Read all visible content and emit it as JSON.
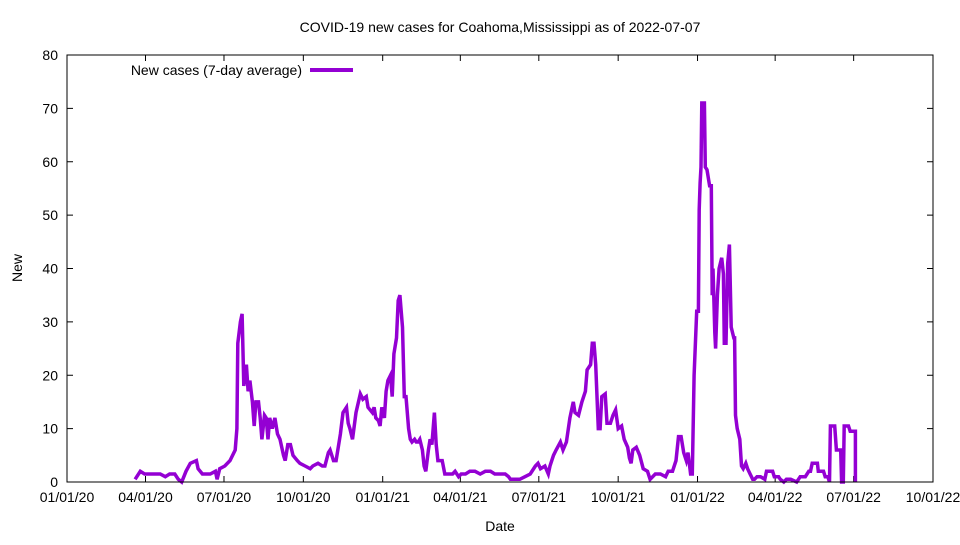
{
  "chart_data": {
    "type": "line",
    "title": "COVID-19 new cases for Coahoma,Mississippi as of 2022-07-07",
    "xlabel": "Date",
    "ylabel": "New",
    "x_units": "days since 01/01/20",
    "xlim": [
      0,
      1004
    ],
    "ylim": [
      0,
      80
    ],
    "yticks": [
      0,
      10,
      20,
      30,
      40,
      50,
      60,
      70,
      80
    ],
    "xticks": [
      {
        "day": 0,
        "label": "01/01/20"
      },
      {
        "day": 91,
        "label": "04/01/20"
      },
      {
        "day": 182,
        "label": "07/01/20"
      },
      {
        "day": 274,
        "label": "10/01/20"
      },
      {
        "day": 366,
        "label": "01/01/21"
      },
      {
        "day": 456,
        "label": "04/01/21"
      },
      {
        "day": 547,
        "label": "07/01/21"
      },
      {
        "day": 639,
        "label": "10/01/21"
      },
      {
        "day": 731,
        "label": "01/01/22"
      },
      {
        "day": 821,
        "label": "04/01/22"
      },
      {
        "day": 912,
        "label": "07/01/22"
      },
      {
        "day": 1004,
        "label": "10/01/22"
      }
    ],
    "grid": false,
    "legend_position": "top-left",
    "series": [
      {
        "name": "New cases (7-day average)",
        "color": "#9400d3",
        "points": [
          [
            79,
            0.5
          ],
          [
            85,
            2
          ],
          [
            90,
            1.5
          ],
          [
            96,
            1.5
          ],
          [
            108,
            1.5
          ],
          [
            114,
            1
          ],
          [
            119,
            1.5
          ],
          [
            125,
            1.5
          ],
          [
            129,
            0.5
          ],
          [
            133,
            0
          ],
          [
            138,
            2
          ],
          [
            143,
            3.5
          ],
          [
            150,
            4
          ],
          [
            152,
            2.5
          ],
          [
            157,
            1.5
          ],
          [
            166,
            1.5
          ],
          [
            172,
            2
          ],
          [
            174,
            0.5
          ],
          [
            177,
            2.5
          ],
          [
            183,
            3
          ],
          [
            189,
            4
          ],
          [
            195,
            6
          ],
          [
            197,
            10
          ],
          [
            198,
            26
          ],
          [
            201,
            30
          ],
          [
            203,
            31.5
          ],
          [
            205,
            18
          ],
          [
            208,
            22
          ],
          [
            210,
            17
          ],
          [
            212,
            19
          ],
          [
            215,
            15
          ],
          [
            217,
            10.5
          ],
          [
            219,
            15
          ],
          [
            222,
            15
          ],
          [
            224,
            12
          ],
          [
            226,
            8
          ],
          [
            229,
            12.5
          ],
          [
            231,
            12
          ],
          [
            233,
            8
          ],
          [
            235,
            12
          ],
          [
            238,
            10
          ],
          [
            241,
            12
          ],
          [
            244,
            9
          ],
          [
            247,
            8
          ],
          [
            251,
            5
          ],
          [
            253,
            4
          ],
          [
            256,
            7
          ],
          [
            259,
            7
          ],
          [
            262,
            5
          ],
          [
            267,
            4
          ],
          [
            270,
            3.5
          ],
          [
            276,
            3
          ],
          [
            282,
            2.5
          ],
          [
            285,
            3
          ],
          [
            291,
            3.5
          ],
          [
            296,
            3
          ],
          [
            299,
            3
          ],
          [
            303,
            5.5
          ],
          [
            305,
            6
          ],
          [
            309,
            4
          ],
          [
            312,
            4
          ],
          [
            317,
            9
          ],
          [
            320,
            13
          ],
          [
            324,
            14
          ],
          [
            326,
            11
          ],
          [
            328,
            10
          ],
          [
            331,
            8
          ],
          [
            335,
            13
          ],
          [
            340,
            16.5
          ],
          [
            343,
            15.5
          ],
          [
            347,
            16
          ],
          [
            349,
            14
          ],
          [
            354,
            13
          ],
          [
            356,
            14
          ],
          [
            358,
            12
          ],
          [
            361,
            11.5
          ],
          [
            363,
            10.5
          ],
          [
            365,
            14
          ],
          [
            368,
            12
          ],
          [
            370,
            17
          ],
          [
            372,
            19
          ],
          [
            375,
            20
          ],
          [
            377,
            16
          ],
          [
            379,
            24
          ],
          [
            382,
            27
          ],
          [
            384,
            34
          ],
          [
            386,
            35
          ],
          [
            389,
            29
          ],
          [
            391,
            16
          ],
          [
            393,
            16
          ],
          [
            396,
            10
          ],
          [
            398,
            8
          ],
          [
            400,
            7.5
          ],
          [
            403,
            8
          ],
          [
            405,
            7.5
          ],
          [
            407,
            7.5
          ],
          [
            409,
            8
          ],
          [
            412,
            6
          ],
          [
            414,
            3
          ],
          [
            416,
            2
          ],
          [
            419,
            6
          ],
          [
            421,
            8
          ],
          [
            423,
            7
          ],
          [
            426,
            13
          ],
          [
            428,
            7
          ],
          [
            430,
            4
          ],
          [
            435,
            4
          ],
          [
            438,
            1.5
          ],
          [
            442,
            1.5
          ],
          [
            447,
            1.5
          ],
          [
            450,
            2
          ],
          [
            454,
            1
          ],
          [
            457,
            1.5
          ],
          [
            462,
            1.5
          ],
          [
            467,
            2
          ],
          [
            473,
            2
          ],
          [
            479,
            1.5
          ],
          [
            485,
            2
          ],
          [
            491,
            2
          ],
          [
            496,
            1.5
          ],
          [
            502,
            1.5
          ],
          [
            508,
            1.5
          ],
          [
            512,
            1
          ],
          [
            514,
            0.5
          ],
          [
            520,
            0.5
          ],
          [
            525,
            0.5
          ],
          [
            531,
            1
          ],
          [
            537,
            1.5
          ],
          [
            543,
            3
          ],
          [
            546,
            3.5
          ],
          [
            549,
            2.5
          ],
          [
            554,
            3
          ],
          [
            558,
            1.5
          ],
          [
            560,
            3
          ],
          [
            564,
            5
          ],
          [
            567,
            6
          ],
          [
            572,
            7.5
          ],
          [
            575,
            6
          ],
          [
            579,
            7.5
          ],
          [
            583,
            12
          ],
          [
            587,
            15
          ],
          [
            589,
            13
          ],
          [
            593,
            12.5
          ],
          [
            597,
            15
          ],
          [
            601,
            17
          ],
          [
            603,
            21
          ],
          [
            607,
            22
          ],
          [
            609,
            26
          ],
          [
            611,
            26
          ],
          [
            613,
            22
          ],
          [
            616,
            10
          ],
          [
            618,
            10
          ],
          [
            620,
            16
          ],
          [
            624,
            16.5
          ],
          [
            626,
            11
          ],
          [
            630,
            11
          ],
          [
            633,
            12.5
          ],
          [
            636,
            13.5
          ],
          [
            639,
            10
          ],
          [
            643,
            10.5
          ],
          [
            646,
            8
          ],
          [
            650,
            6.5
          ],
          [
            652,
            4.5
          ],
          [
            654,
            3.5
          ],
          [
            656,
            6
          ],
          [
            660,
            6.5
          ],
          [
            664,
            5
          ],
          [
            668,
            2.5
          ],
          [
            673,
            2
          ],
          [
            676,
            0.5
          ],
          [
            682,
            1.5
          ],
          [
            688,
            1.5
          ],
          [
            694,
            1
          ],
          [
            697,
            2
          ],
          [
            702,
            2
          ],
          [
            706,
            4
          ],
          [
            709,
            8.5
          ],
          [
            712,
            8.5
          ],
          [
            715,
            5.5
          ],
          [
            718,
            4
          ],
          [
            720,
            5.5
          ],
          [
            723,
            1.5
          ],
          [
            725,
            1.5
          ],
          [
            727,
            20
          ],
          [
            730,
            32
          ],
          [
            732,
            32
          ],
          [
            733,
            51
          ],
          [
            734,
            56
          ],
          [
            735,
            59
          ],
          [
            736,
            71
          ],
          [
            739,
            71
          ],
          [
            740,
            59
          ],
          [
            742,
            58.5
          ],
          [
            745,
            55.5
          ],
          [
            747,
            55.5
          ],
          [
            748,
            35
          ],
          [
            749,
            40
          ],
          [
            751,
            28
          ],
          [
            752,
            25
          ],
          [
            754,
            35
          ],
          [
            756,
            40
          ],
          [
            759,
            42
          ],
          [
            761,
            39
          ],
          [
            762,
            26
          ],
          [
            764,
            26
          ],
          [
            766,
            41
          ],
          [
            768,
            44.5
          ],
          [
            770,
            29
          ],
          [
            773,
            27
          ],
          [
            774,
            27
          ],
          [
            775,
            12.5
          ],
          [
            777,
            10
          ],
          [
            780,
            8
          ],
          [
            782,
            3
          ],
          [
            784,
            2.5
          ],
          [
            787,
            3.5
          ],
          [
            789,
            2.5
          ],
          [
            792,
            1.5
          ],
          [
            795,
            0.5
          ],
          [
            797,
            0.5
          ],
          [
            800,
            1
          ],
          [
            804,
            1
          ],
          [
            809,
            0.5
          ],
          [
            811,
            2
          ],
          [
            818,
            2
          ],
          [
            820,
            1
          ],
          [
            825,
            1
          ],
          [
            827,
            0.5
          ],
          [
            831,
            0
          ],
          [
            834,
            0.5
          ],
          [
            839,
            0.5
          ],
          [
            846,
            0
          ],
          [
            850,
            1
          ],
          [
            856,
            1
          ],
          [
            860,
            2
          ],
          [
            862,
            2
          ],
          [
            864,
            3.5
          ],
          [
            870,
            3.5
          ],
          [
            871,
            2
          ],
          [
            873,
            2
          ],
          [
            877,
            2
          ],
          [
            879,
            1
          ],
          [
            882,
            1
          ],
          [
            884,
            0
          ],
          [
            885,
            10.5
          ],
          [
            890,
            10.5
          ],
          [
            892,
            6
          ],
          [
            897,
            6
          ],
          [
            898,
            0
          ],
          [
            900,
            0
          ],
          [
            901,
            10.5
          ],
          [
            906,
            10.5
          ],
          [
            908,
            9.5
          ],
          [
            914,
            9.5
          ],
          [
            914,
            0
          ]
        ]
      }
    ]
  }
}
